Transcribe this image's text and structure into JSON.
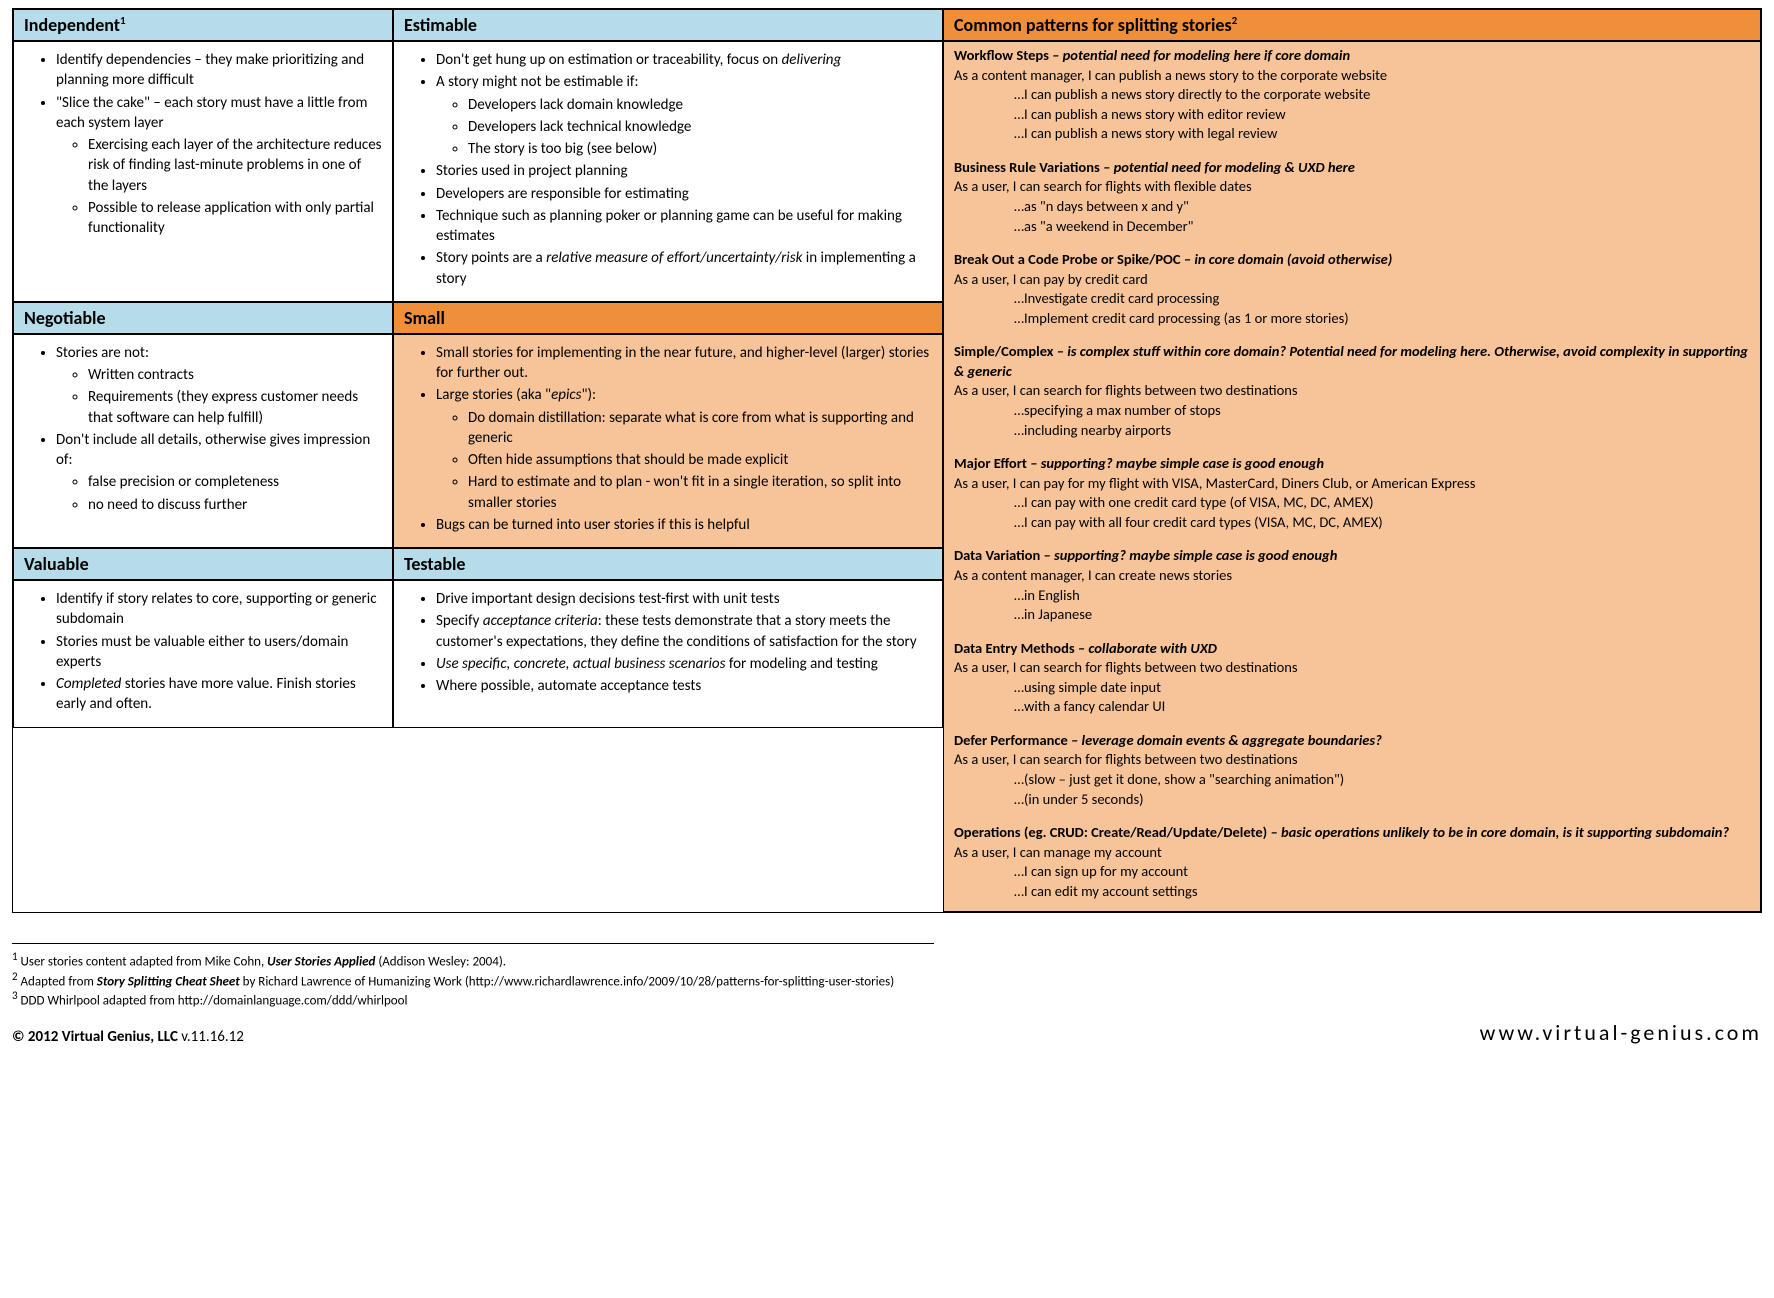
{
  "colors": {
    "blue": "#b6dce9",
    "orange_header": "#ef8f3a",
    "orange_body": "#f7c49a"
  },
  "headers": {
    "independent": "Independent",
    "estimable": "Estimable",
    "patterns": "Common patterns for splitting stories",
    "negotiable": "Negotiable",
    "small": "Small",
    "valuable": "Valuable",
    "testable": "Testable"
  },
  "sup": {
    "independent": "1",
    "patterns": "2"
  },
  "independent": {
    "i0": "Identify dependencies – they make prioritizing and planning more difficult",
    "i1": "\"Slice the cake\" – each story must have a little from each system layer",
    "i1a": "Exercising each layer of the architecture reduces risk of finding last-minute problems in one of the layers",
    "i1b": "Possible to release application with only partial functionality"
  },
  "estimable": {
    "e0a": "Don't get hung up on estimation or traceability, focus on ",
    "e0b": "delivering",
    "e1": "A story might not be estimable if:",
    "e1a": "Developers lack domain knowledge",
    "e1b": "Developers lack technical knowledge",
    "e1c": "The story is too big (see below)",
    "e2": "Stories used in project planning",
    "e3": "Developers are responsible for estimating",
    "e4": "Technique such as planning poker or planning game can be useful for making estimates",
    "e5a": "Story points are a ",
    "e5b": "relative measure of effort/uncertainty/risk",
    "e5c": " in implementing a story"
  },
  "negotiable": {
    "n0": "Stories are not:",
    "n0a": "Written contracts",
    "n0b": "Requirements (they express customer needs that software can help fulfill)",
    "n1": "Don't include all details, otherwise gives impression of:",
    "n1a": "false precision or completeness",
    "n1b": "no need to discuss further"
  },
  "small": {
    "s0": "Small stories for implementing in the near future, and higher-level (larger) stories for further out.",
    "s1a": "Large stories (aka \"",
    "s1b": "epics",
    "s1c": "\"):",
    "s1d": "Do domain distillation: separate what is core from what is supporting and generic",
    "s1e": "Often hide assumptions that should be made explicit",
    "s1f": "Hard to estimate and to plan - won't fit in a single iteration, so split into smaller stories",
    "s2": "Bugs can be turned into user stories if this is helpful"
  },
  "valuable": {
    "v0": "Identify if story relates to core, supporting or generic subdomain",
    "v1": "Stories must be valuable either to users/domain experts",
    "v2a": "Completed",
    "v2b": " stories have more value. Finish stories early and often."
  },
  "testable": {
    "t0": "Drive important design decisions test-first with unit tests",
    "t1a": "Specify ",
    "t1b": "acceptance criteria",
    "t1c": ": these tests demonstrate that a story meets the customer's expectations, they define the conditions of satisfaction for the story",
    "t2": "Use specific, concrete, actual business scenarios",
    "t2b": " for modeling and testing",
    "t3": "Where possible, automate acceptance tests"
  },
  "patterns": {
    "p1t": "Workflow Steps",
    "p1n": " – potential need for modeling here if core domain",
    "p1l0": "As a content manager, I can publish a news story to the corporate website",
    "p1l1": "…I can publish a news story directly to the corporate website",
    "p1l2": "…I can publish a news story with editor review",
    "p1l3": "…I can publish a news story with legal review",
    "p2t": "Business Rule Variations",
    "p2n": " – potential need for modeling & UXD here",
    "p2l0": "As a user, I can search for flights with flexible dates",
    "p2l1": "…as \"n days between x and y\"",
    "p2l2": "…as \"a weekend in December\"",
    "p3t": "Break Out a Code Probe or Spike/POC",
    "p3n": " – in core domain (avoid otherwise)",
    "p3l0": "As a user, I can pay by credit card",
    "p3l1": "…Investigate credit card processing",
    "p3l2": "…Implement credit card processing (as 1 or more stories)",
    "p4t": "Simple/Complex",
    "p4n": " – is complex stuff within core domain? Potential need for modeling here. Otherwise, avoid complexity in supporting & generic",
    "p4l0": "As a user, I can search for flights between two destinations",
    "p4l1": "…specifying a max number of stops",
    "p4l2": "…including nearby airports",
    "p5t": "Major Effort",
    "p5n": " – supporting? maybe simple case is good enough",
    "p5l0": "As a user, I can pay for my flight with VISA, MasterCard, Diners Club, or American Express",
    "p5l1": "…I can pay with one credit card type (of VISA, MC, DC, AMEX)",
    "p5l2": "…I can pay with all four credit card types (VISA, MC, DC, AMEX)",
    "p6t": "Data Variation",
    "p6n": " – supporting? maybe simple case is good enough",
    "p6l0": "As a content manager, I can create news stories",
    "p6l1": "…in English",
    "p6l2": "…in Japanese",
    "p7t": "Data Entry Methods",
    "p7n": " – collaborate with UXD",
    "p7l0": "As a user, I can search for flights between two destinations",
    "p7l1": "…using simple date input",
    "p7l2": "…with a fancy calendar UI",
    "p8t": "Defer Performance",
    "p8n": " – leverage domain events & aggregate boundaries?",
    "p8l0": "As a user, I can search for flights between two destinations",
    "p8l1": "…(slow – just get it done, show a \"searching animation\")",
    "p8l2": "…(in under 5 seconds)",
    "p9t": "Operations (eg. CRUD: Create/Read/Update/Delete)",
    "p9n": " – basic operations unlikely to be in core domain, is it supporting subdomain?",
    "p9l0": "As a user, I can manage my account",
    "p9l1": "…I can sign up for my account",
    "p9l2": "…I can edit my account settings"
  },
  "footnotes": {
    "f1a": " User stories content adapted from Mike Cohn, ",
    "f1b": "User Stories Applied",
    "f1c": " (Addison Wesley: 2004).",
    "f2a": " Adapted from ",
    "f2b": "Story Splitting Cheat Sheet",
    "f2c": " by Richard Lawrence of Humanizing Work (http://www.richardlawrence.info/2009/10/28/patterns-for-splitting-user-stories)",
    "f3": " DDD Whirlpool adapted from http://domainlanguage.com/ddd/whirlpool"
  },
  "footer": {
    "copy": "©  2012 Virtual Genius, LLC ",
    "ver": "v.11.16.12",
    "url": "www.virtual-genius.com"
  }
}
